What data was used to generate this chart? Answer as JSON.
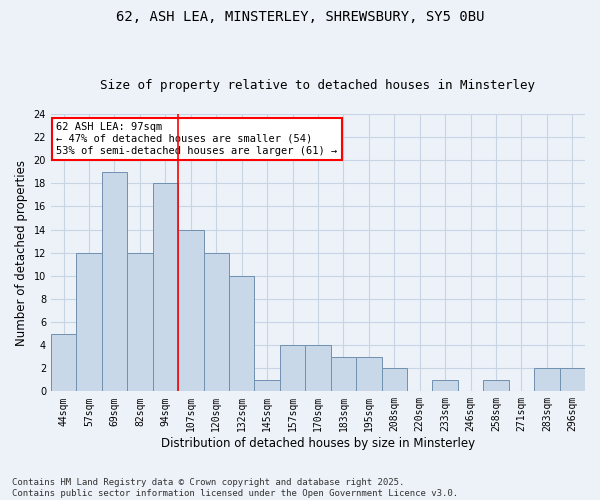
{
  "title_line1": "62, ASH LEA, MINSTERLEY, SHREWSBURY, SY5 0BU",
  "title_line2": "Size of property relative to detached houses in Minsterley",
  "xlabel": "Distribution of detached houses by size in Minsterley",
  "ylabel": "Number of detached properties",
  "categories": [
    "44sqm",
    "57sqm",
    "69sqm",
    "82sqm",
    "94sqm",
    "107sqm",
    "120sqm",
    "132sqm",
    "145sqm",
    "157sqm",
    "170sqm",
    "183sqm",
    "195sqm",
    "208sqm",
    "220sqm",
    "233sqm",
    "246sqm",
    "258sqm",
    "271sqm",
    "283sqm",
    "296sqm"
  ],
  "values": [
    5,
    12,
    19,
    12,
    18,
    14,
    12,
    10,
    1,
    4,
    4,
    3,
    3,
    2,
    0,
    1,
    0,
    1,
    0,
    2,
    2
  ],
  "bar_color": "#c8d8e8",
  "bar_edge_color": "#7090b0",
  "grid_color": "#c8d4e4",
  "background_color": "#edf2f9",
  "vline_x": 4.5,
  "vline_color": "red",
  "annotation_text": "62 ASH LEA: 97sqm\n← 47% of detached houses are smaller (54)\n53% of semi-detached houses are larger (61) →",
  "annotation_box_color": "white",
  "annotation_box_edge_color": "red",
  "ylim": [
    0,
    24
  ],
  "yticks": [
    0,
    2,
    4,
    6,
    8,
    10,
    12,
    14,
    16,
    18,
    20,
    22,
    24
  ],
  "footnote": "Contains HM Land Registry data © Crown copyright and database right 2025.\nContains public sector information licensed under the Open Government Licence v3.0.",
  "title_fontsize": 10,
  "subtitle_fontsize": 9,
  "tick_fontsize": 7,
  "label_fontsize": 8.5,
  "annotation_fontsize": 7.5,
  "footnote_fontsize": 6.5
}
